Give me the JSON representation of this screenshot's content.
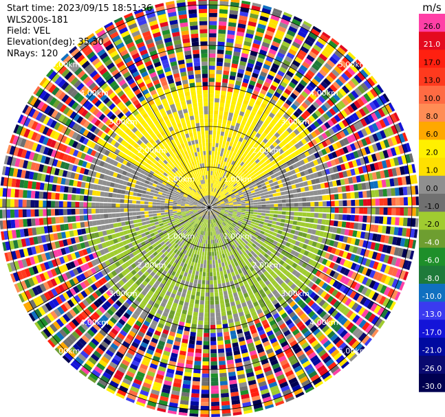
{
  "header": {
    "start_time": "Start time: 2023/09/15 18:51:36",
    "site": "WLS200s-181",
    "field": "Field: VEL",
    "elevation": "Elevation(deg): 35.30",
    "nrays": "NRays: 120"
  },
  "chart_data": {
    "type": "ppi",
    "field": "VEL",
    "units": "m/s",
    "nrays": 120,
    "elevation_deg": 35.3,
    "range_rings_km": [
      1.0,
      2.0,
      3.0,
      4.0,
      5.0
    ],
    "ring_labels": [
      "1.00km",
      "2.00km",
      "3.00km",
      "4.00km",
      "5.00km"
    ],
    "grid_azimuths_deg": [
      0,
      30,
      60,
      90,
      120,
      150,
      180,
      210,
      240,
      270,
      300,
      330
    ],
    "colorbar": {
      "ticks": [
        "26.0",
        "21.0",
        "17.0",
        "13.0",
        "10.0",
        "8.0",
        "6.0",
        "2.0",
        "1.0",
        "0.0",
        "-1.0",
        "-2.0",
        "-4.0",
        "-6.0",
        "-8.0",
        "-10.0",
        "-13.0",
        "-17.0",
        "-21.0",
        "-26.0",
        "-30.0"
      ],
      "colors": [
        "#ff3fa6",
        "#e40a1f",
        "#ff2010",
        "#ff3a1e",
        "#ff6b43",
        "#ff8d55",
        "#ffa800",
        "#fff000",
        "#ffe000",
        "#8f8f8f",
        "#707070",
        "#a0cc30",
        "#6e9e30",
        "#1e8f2a",
        "#1e7a3a",
        "#1070c0",
        "#3a3af0",
        "#1414d8",
        "#000aa0",
        "#0a0a70",
        "#000050"
      ]
    },
    "regions": [
      {
        "name": "inner yellow lobe",
        "azimuth_from": 300,
        "azimuth_to": 60,
        "range_km": [
          0.3,
          3.0
        ],
        "value_ms": 2.0
      },
      {
        "name": "inner green lobe",
        "azimuth_from": 90,
        "azimuth_to": 260,
        "range_km": [
          0.3,
          3.0
        ],
        "value_ms": -2.0
      },
      {
        "name": "noise ring",
        "range_km": [
          3.0,
          6.5
        ],
        "value_ms": "random"
      }
    ]
  },
  "colors": {
    "background": "#ffffff",
    "gridline": "#000000",
    "ray_gap": "#ffffff"
  }
}
